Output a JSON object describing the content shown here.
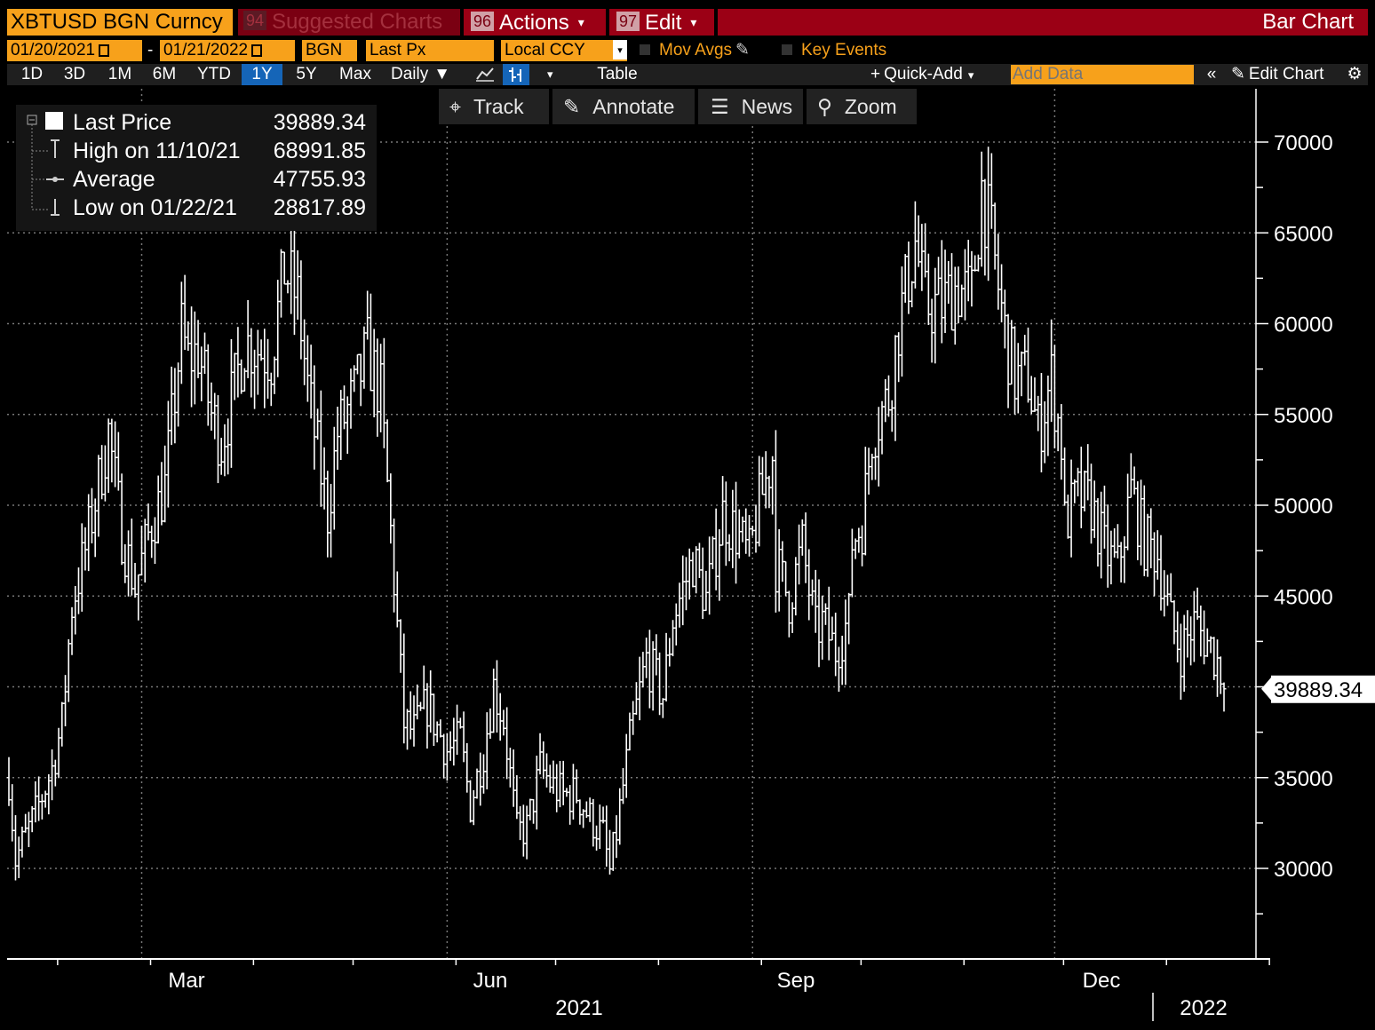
{
  "header": {
    "security": "XBTUSD BGN Curncy",
    "suggested_num": "94",
    "suggested_label": "Suggested Charts",
    "actions_num": "96",
    "actions_label": "Actions",
    "edit_num": "97",
    "edit_label": "Edit",
    "chart_type": "Bar Chart"
  },
  "controls": {
    "start_date": "01/20/2021",
    "date_sep": "-",
    "end_date": "01/21/2022",
    "source": "BGN",
    "field": "Last Px",
    "currency": "Local CCY",
    "mov_avgs": "Mov Avgs",
    "key_events": "Key Events"
  },
  "periods": [
    "1D",
    "3D",
    "1M",
    "6M",
    "YTD",
    "1Y",
    "5Y",
    "Max"
  ],
  "selected_period": "1Y",
  "frequency": "Daily",
  "table_label": "Table",
  "quick_add": "Quick-Add",
  "add_data_placeholder": "Add Data",
  "edit_chart": "Edit Chart",
  "toolbar": {
    "track": "Track",
    "annotate": "Annotate",
    "news": "News",
    "zoom": "Zoom"
  },
  "legend": {
    "last_label": "Last Price",
    "last_value": "39889.34",
    "high_label": "High on 11/10/21",
    "high_value": "68991.85",
    "avg_label": "Average",
    "avg_value": "47755.93",
    "low_label": "Low on 01/22/21",
    "low_value": "28817.89"
  },
  "colors": {
    "accent": "#f7a11b",
    "header_red": "#9b0015",
    "selected_tab": "#1565b8",
    "bars": "#ffffff"
  },
  "chart_data": {
    "type": "bar",
    "title": "",
    "series_name": "Last Price",
    "ylim": [
      25000,
      72000
    ],
    "y_ticks": [
      "30000",
      "35000",
      "45000",
      "50000",
      "55000",
      "60000",
      "65000",
      "70000"
    ],
    "x_month_labels": [
      "Mar",
      "Jun",
      "Sep",
      "Dec"
    ],
    "x_year_labels": [
      "2021",
      "2022"
    ],
    "last_price_label": "39889.34",
    "anchors": [
      [
        "2021-01-20",
        35000
      ],
      [
        "2021-01-22",
        30500
      ],
      [
        "2021-01-28",
        33000
      ],
      [
        "2021-02-02",
        35500
      ],
      [
        "2021-02-05",
        38000
      ],
      [
        "2021-02-08",
        44500
      ],
      [
        "2021-02-12",
        47500
      ],
      [
        "2021-02-19",
        54000
      ],
      [
        "2021-02-23",
        48500
      ],
      [
        "2021-02-27",
        45500
      ],
      [
        "2021-03-04",
        49000
      ],
      [
        "2021-03-08",
        51000
      ],
      [
        "2021-03-13",
        59500
      ],
      [
        "2021-03-15",
        58000
      ],
      [
        "2021-03-18",
        58500
      ],
      [
        "2021-03-22",
        55000
      ],
      [
        "2021-03-25",
        53500
      ],
      [
        "2021-03-28",
        55700
      ],
      [
        "2021-04-01",
        59000
      ],
      [
        "2021-04-06",
        58500
      ],
      [
        "2021-04-09",
        58200
      ],
      [
        "2021-04-13",
        63000
      ],
      [
        "2021-04-17",
        61300
      ],
      [
        "2021-04-20",
        56500
      ],
      [
        "2021-04-22",
        54000
      ],
      [
        "2021-04-26",
        49500
      ],
      [
        "2021-04-29",
        54000
      ],
      [
        "2021-05-04",
        56000
      ],
      [
        "2021-05-08",
        58500
      ],
      [
        "2021-05-12",
        56000
      ],
      [
        "2021-05-15",
        48500
      ],
      [
        "2021-05-19",
        38000
      ],
      [
        "2021-05-22",
        37500
      ],
      [
        "2021-05-26",
        39000
      ],
      [
        "2021-06-01",
        36500
      ],
      [
        "2021-06-05",
        37000
      ],
      [
        "2021-06-08",
        33500
      ],
      [
        "2021-06-12",
        36500
      ],
      [
        "2021-06-15",
        40000
      ],
      [
        "2021-06-18",
        38200
      ],
      [
        "2021-06-22",
        32000
      ],
      [
        "2021-06-25",
        32200
      ],
      [
        "2021-06-29",
        35500
      ],
      [
        "2021-07-03",
        34500
      ],
      [
        "2021-07-06",
        34000
      ],
      [
        "2021-07-10",
        34100
      ],
      [
        "2021-07-14",
        32800
      ],
      [
        "2021-07-18",
        31800
      ],
      [
        "2021-07-20",
        29800
      ],
      [
        "2021-07-22",
        32000
      ],
      [
        "2021-07-26",
        37000
      ],
      [
        "2021-07-31",
        41500
      ],
      [
        "2021-08-05",
        39500
      ],
      [
        "2021-08-08",
        43800
      ],
      [
        "2021-08-14",
        47000
      ],
      [
        "2021-08-18",
        44800
      ],
      [
        "2021-08-23",
        49500
      ],
      [
        "2021-08-27",
        48500
      ],
      [
        "2021-08-31",
        47100
      ],
      [
        "2021-09-03",
        50000
      ],
      [
        "2021-09-07",
        52700
      ],
      [
        "2021-09-08",
        46800
      ],
      [
        "2021-09-12",
        44800
      ],
      [
        "2021-09-16",
        47700
      ],
      [
        "2021-09-20",
        43000
      ],
      [
        "2021-09-22",
        43500
      ],
      [
        "2021-09-26",
        42000
      ],
      [
        "2021-09-30",
        43800
      ],
      [
        "2021-10-01",
        48000
      ],
      [
        "2021-10-04",
        49000
      ],
      [
        "2021-10-07",
        54000
      ],
      [
        "2021-10-12",
        56000
      ],
      [
        "2021-10-15",
        60000
      ],
      [
        "2021-10-20",
        64500
      ],
      [
        "2021-10-23",
        61000
      ],
      [
        "2021-10-28",
        61000
      ],
      [
        "2021-11-01",
        62000
      ],
      [
        "2021-11-06",
        61500
      ],
      [
        "2021-11-09",
        67500
      ],
      [
        "2021-11-12",
        64500
      ],
      [
        "2021-11-16",
        59500
      ],
      [
        "2021-11-19",
        57000
      ],
      [
        "2021-11-23",
        57000
      ],
      [
        "2021-11-26",
        54000
      ],
      [
        "2021-11-30",
        57000
      ],
      [
        "2021-12-03",
        53500
      ],
      [
        "2021-12-04",
        49000
      ],
      [
        "2021-12-08",
        50500
      ],
      [
        "2021-12-12",
        50000
      ],
      [
        "2021-12-16",
        47500
      ],
      [
        "2021-12-20",
        46500
      ],
      [
        "2021-12-24",
        50800
      ],
      [
        "2021-12-28",
        48000
      ],
      [
        "2022-01-01",
        47300
      ],
      [
        "2022-01-05",
        43500
      ],
      [
        "2022-01-08",
        42000
      ],
      [
        "2022-01-12",
        43500
      ],
      [
        "2022-01-17",
        42200
      ],
      [
        "2022-01-20",
        41000
      ],
      [
        "2022-01-21",
        39889.34
      ]
    ]
  }
}
